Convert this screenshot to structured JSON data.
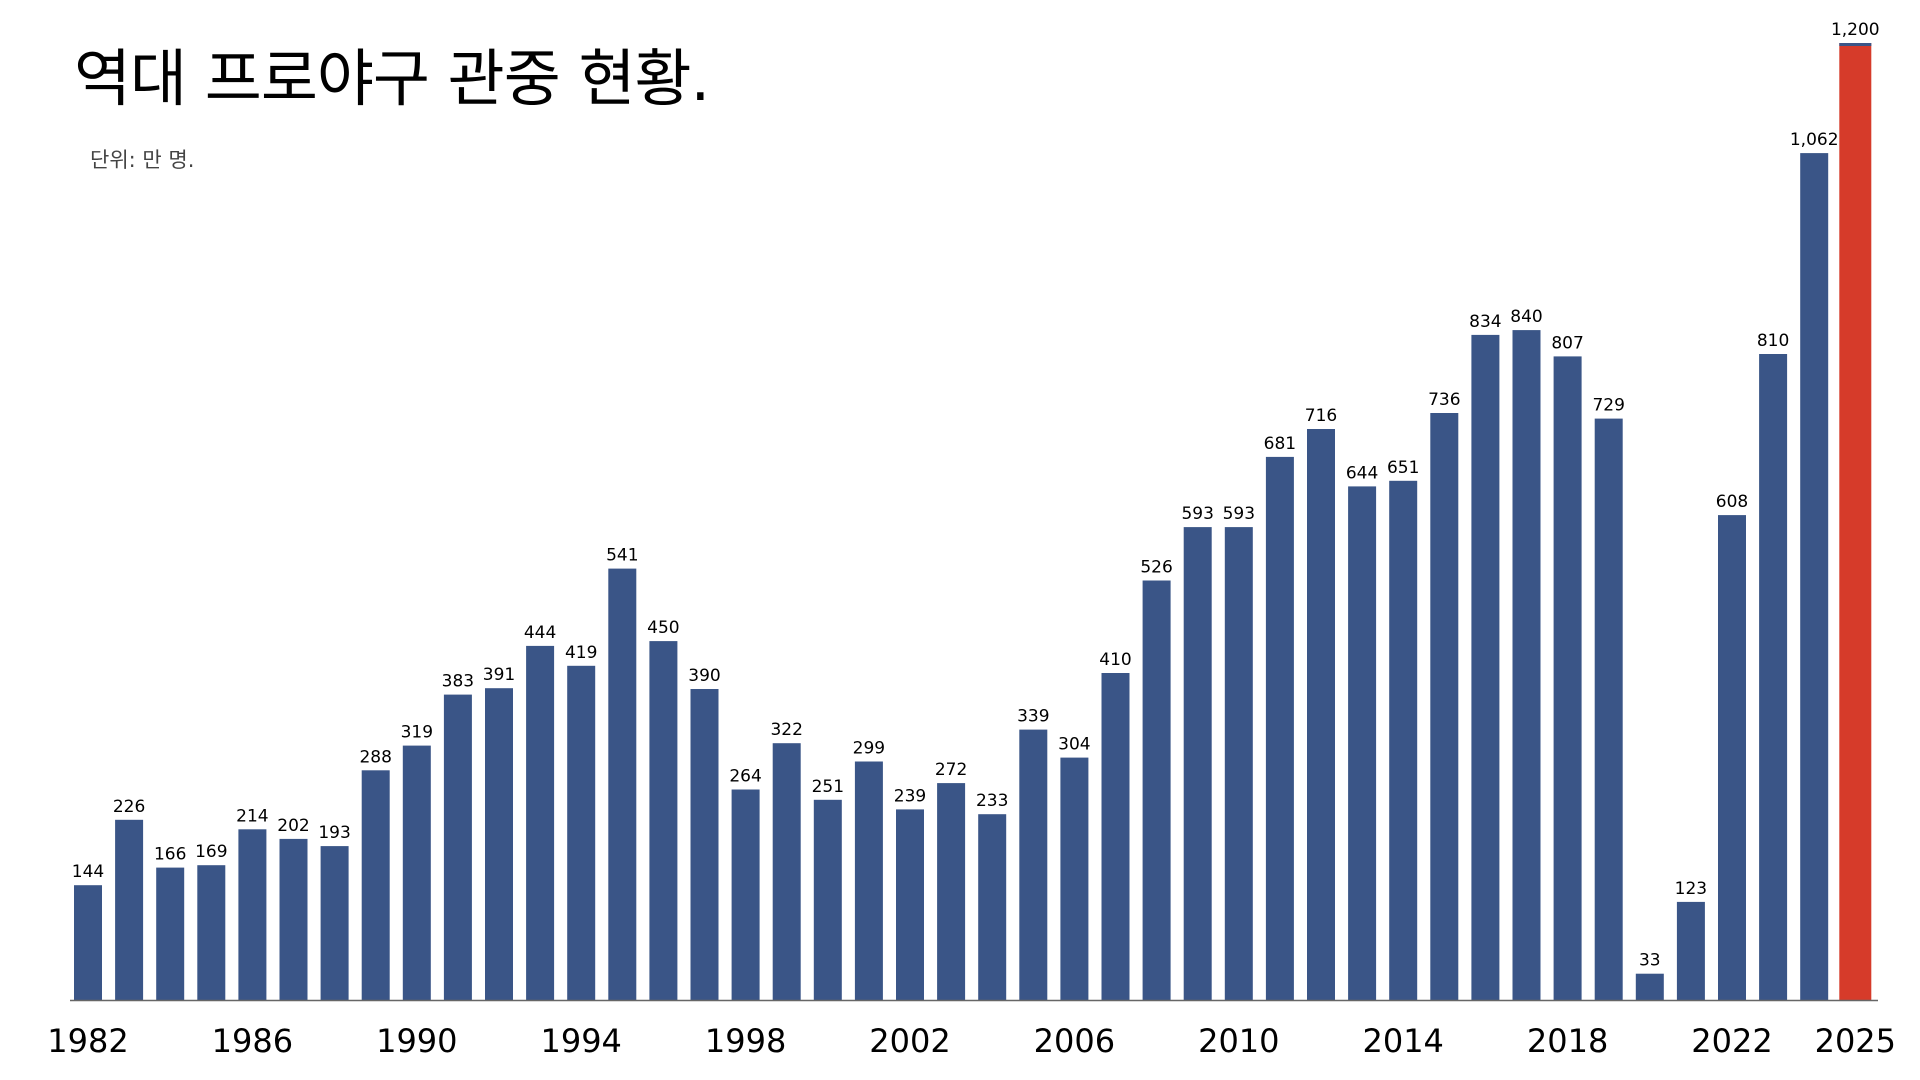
{
  "chart_data": {
    "type": "bar",
    "title": "역대 프로야구 관중 현황.",
    "unit_label": "단위: 만 명.",
    "x": [
      1982,
      1983,
      1984,
      1985,
      1986,
      1987,
      1988,
      1989,
      1990,
      1991,
      1992,
      1993,
      1994,
      1995,
      1996,
      1997,
      1998,
      1999,
      2000,
      2001,
      2002,
      2003,
      2004,
      2005,
      2006,
      2007,
      2008,
      2009,
      2010,
      2011,
      2012,
      2013,
      2014,
      2015,
      2016,
      2017,
      2018,
      2019,
      2020,
      2021,
      2022,
      2023,
      2024,
      2025
    ],
    "values": [
      144,
      226,
      166,
      169,
      214,
      202,
      193,
      288,
      319,
      383,
      391,
      444,
      419,
      541,
      450,
      390,
      264,
      322,
      251,
      299,
      239,
      272,
      233,
      339,
      304,
      410,
      526,
      593,
      593,
      681,
      716,
      644,
      651,
      736,
      834,
      840,
      807,
      729,
      33,
      123,
      608,
      810,
      1062,
      1200
    ],
    "value_labels": [
      "144",
      "226",
      "166",
      "169",
      "214",
      "202",
      "193",
      "288",
      "319",
      "383",
      "391",
      "444",
      "419",
      "541",
      "450",
      "390",
      "264",
      "322",
      "251",
      "299",
      "239",
      "272",
      "233",
      "339",
      "304",
      "410",
      "526",
      "593",
      "593",
      "681",
      "716",
      "644",
      "651",
      "736",
      "834",
      "840",
      "807",
      "729",
      "33",
      "123",
      "608",
      "810",
      "1,062",
      "1,200"
    ],
    "tick_labels": [
      "1982",
      "1986",
      "1990",
      "1994",
      "1998",
      "2002",
      "2006",
      "2010",
      "2014",
      "2018",
      "2022",
      "2025"
    ],
    "highlight_index": 43,
    "ylim": [
      0,
      1200
    ],
    "grid": false,
    "legend": false,
    "colors": {
      "bar": "#3a5587",
      "highlight": "#d63b2a",
      "axis": "#666666"
    }
  }
}
